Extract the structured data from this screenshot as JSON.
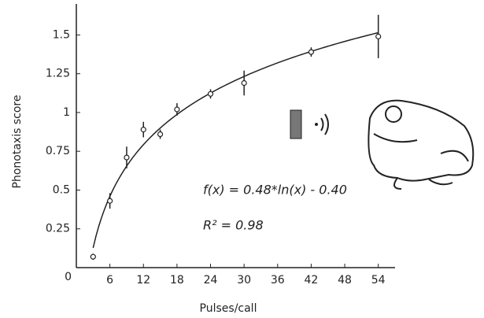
{
  "chart_data": {
    "type": "scatter",
    "x_label": "Pulses/call",
    "y_label": "Phonotaxis score",
    "x": [
      3,
      6,
      9,
      12,
      15,
      18,
      24,
      30,
      42,
      54
    ],
    "values": [
      0.07,
      0.43,
      0.71,
      0.89,
      0.86,
      1.02,
      1.12,
      1.19,
      1.39,
      1.49
    ],
    "errors": [
      0.02,
      0.05,
      0.07,
      0.05,
      0.03,
      0.04,
      0.03,
      0.08,
      0.03,
      0.14
    ],
    "color": "#222222",
    "fit": {
      "slope": 0.48,
      "intercept": -0.4
    },
    "annotations": [
      "f(x) = 0.48*ln(x) - 0.40",
      "R² = 0.98"
    ],
    "xlim": [
      0,
      57
    ],
    "xticks": [
      6,
      12,
      18,
      24,
      30,
      36,
      42,
      48,
      54
    ],
    "ylim": [
      0,
      1.7
    ],
    "yticks": [
      0,
      0.25,
      0.5,
      0.75,
      1,
      1.25,
      1.5
    ]
  }
}
